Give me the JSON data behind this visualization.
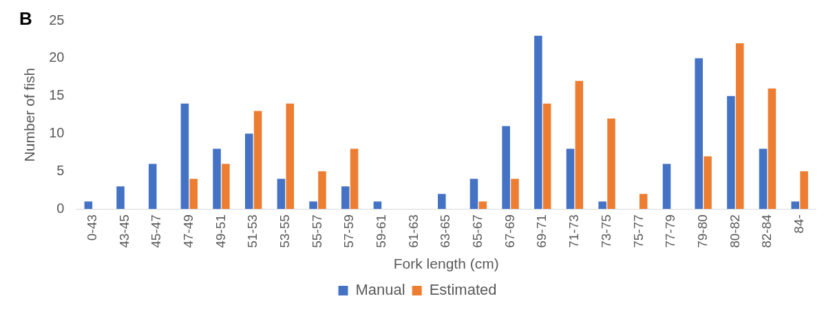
{
  "chart_data": {
    "type": "bar",
    "xlabel": "Fork length (cm)",
    "ylabel": "Number of fish",
    "annotations": [
      "B"
    ],
    "categories": [
      "0-43",
      "43-45",
      "45-47",
      "47-49",
      "49-51",
      "51-53",
      "53-55",
      "55-57",
      "57-59",
      "59-61",
      "61-63",
      "63-65",
      "65-67",
      "67-69",
      "69-71",
      "71-73",
      "73-75",
      "75-77",
      "77-79",
      "79-80",
      "80-82",
      "82-84",
      "84-"
    ],
    "series": [
      {
        "name": "Manual",
        "color": "#4472c4",
        "values": [
          1,
          3,
          6,
          14,
          8,
          10,
          4,
          1,
          3,
          1,
          0,
          2,
          4,
          11,
          23,
          8,
          1,
          0,
          6,
          20,
          15,
          8,
          1
        ]
      },
      {
        "name": "Estimated",
        "color": "#ed7d31",
        "values": [
          0,
          0,
          0,
          4,
          6,
          13,
          14,
          5,
          8,
          0,
          0,
          0,
          1,
          4,
          14,
          17,
          12,
          2,
          0,
          7,
          22,
          16,
          5
        ]
      }
    ],
    "ylim": [
      0,
      25
    ],
    "yticks": [
      0,
      5,
      10,
      15,
      20,
      25
    ],
    "grid": false,
    "legend": "bottom"
  }
}
